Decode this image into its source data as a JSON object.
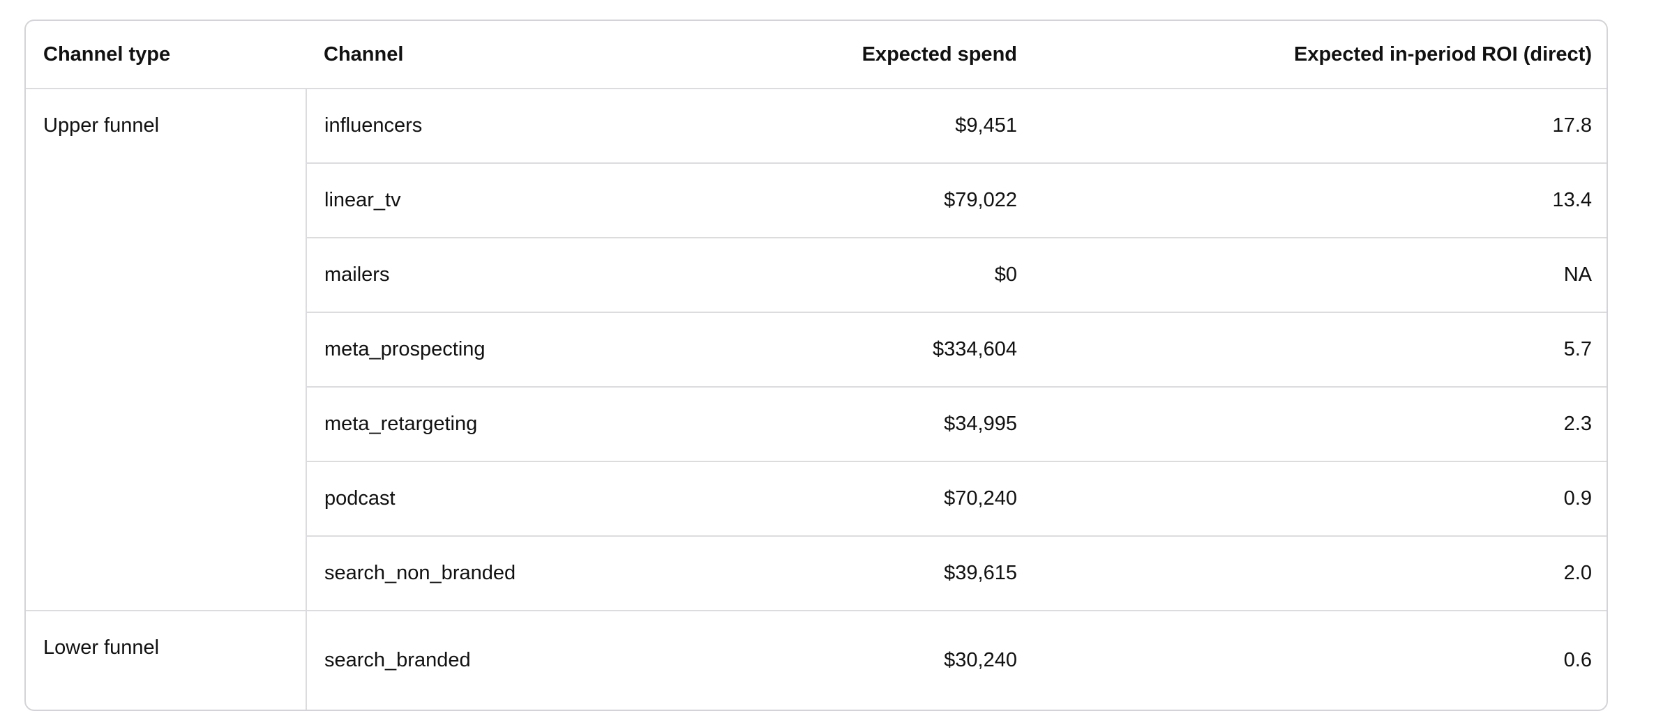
{
  "table": {
    "columns": [
      "Channel type",
      "Channel",
      "Expected spend",
      "Expected in-period ROI (direct)"
    ],
    "groups": [
      {
        "name": "Upper funnel",
        "rows": [
          [
            "influencers",
            "$9,451",
            "17.8"
          ],
          [
            "linear_tv",
            "$79,022",
            "13.4"
          ],
          [
            "mailers",
            "$0",
            "NA"
          ],
          [
            "meta_prospecting",
            "$334,604",
            "5.7"
          ],
          [
            "meta_retargeting",
            "$34,995",
            "2.3"
          ],
          [
            "podcast",
            "$70,240",
            "0.9"
          ],
          [
            "search_non_branded",
            "$39,615",
            "2.0"
          ]
        ]
      },
      {
        "name": "Lower funnel",
        "rows": [
          [
            "search_branded",
            "$30,240",
            "0.6"
          ]
        ]
      }
    ]
  }
}
